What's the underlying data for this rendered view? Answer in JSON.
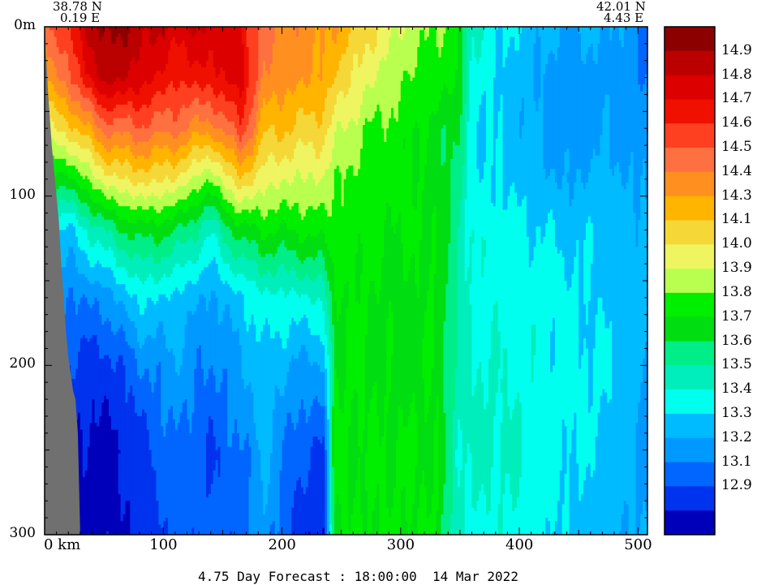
{
  "chart_data": {
    "type": "heatmap",
    "title": "4.75 Day Forecast : 18:00:00  14 Mar 2022",
    "start_point": {
      "lat": "38.78 N",
      "lon": "0.19 E"
    },
    "end_point": {
      "lat": "42.01 N",
      "lon": "4.43 E"
    },
    "xlabel_unit": "km",
    "ylabel_unit": "m",
    "xlim": [
      0,
      508
    ],
    "ylim": [
      0,
      300
    ],
    "y_inverted": true,
    "x_ticks": [
      0,
      100,
      200,
      300,
      400,
      500
    ],
    "y_tick_labels": [
      "0m",
      "100",
      "200",
      "300"
    ],
    "y_ticks": [
      0,
      100,
      200,
      300
    ],
    "colorbar": {
      "levels": [
        {
          "label": "",
          "color": "#8c0000"
        },
        {
          "label": "14.9",
          "color": "#bb0000"
        },
        {
          "label": "14.8",
          "color": "#dd0000"
        },
        {
          "label": "14.7",
          "color": "#f01000"
        },
        {
          "label": "14.6",
          "color": "#ff4020"
        },
        {
          "label": "14.5",
          "color": "#ff7040"
        },
        {
          "label": "14.4",
          "color": "#ff9020"
        },
        {
          "label": "14.3",
          "color": "#ffb400"
        },
        {
          "label": "14.1",
          "color": "#f5d838"
        },
        {
          "label": "14.0",
          "color": "#eef560"
        },
        {
          "label": "13.9",
          "color": "#b8ff50"
        },
        {
          "label": "13.8",
          "color": "#00ee00"
        },
        {
          "label": "13.7",
          "color": "#00dd10"
        },
        {
          "label": "13.6",
          "color": "#00ee88"
        },
        {
          "label": "13.5",
          "color": "#00eebb"
        },
        {
          "label": "13.4",
          "color": "#00ffee"
        },
        {
          "label": "13.3",
          "color": "#00bbff"
        },
        {
          "label": "13.2",
          "color": "#0099ff"
        },
        {
          "label": "13.1",
          "color": "#0066ff"
        },
        {
          "label": "12.9",
          "color": "#0033ee"
        },
        {
          "label": "",
          "color": "#0000bb"
        }
      ]
    },
    "bathymetry": {
      "x_km": [
        0,
        3,
        6,
        8,
        10,
        12,
        14,
        16,
        18,
        20,
        22,
        24,
        26,
        28,
        30
      ],
      "depth_m": [
        0,
        40,
        70,
        85,
        100,
        115,
        140,
        160,
        180,
        195,
        205,
        215,
        220,
        240,
        300
      ]
    },
    "profiles": [
      {
        "x": 0,
        "temps": [
          14.4,
          14.25,
          14.05,
          13.7,
          13.4,
          13.2,
          13.1,
          13.0,
          12.95
        ]
      },
      {
        "x": 20,
        "temps": [
          14.6,
          14.45,
          14.1,
          13.7,
          13.3,
          13.1,
          13.0,
          12.9,
          12.85
        ]
      },
      {
        "x": 50,
        "temps": [
          14.95,
          14.85,
          14.4,
          14.0,
          13.55,
          13.15,
          12.95,
          12.85,
          12.85
        ]
      },
      {
        "x": 80,
        "temps": [
          14.85,
          14.75,
          14.45,
          14.1,
          13.7,
          13.35,
          13.1,
          12.95,
          12.95
        ]
      },
      {
        "x": 110,
        "temps": [
          14.75,
          14.6,
          14.4,
          14.05,
          13.65,
          13.3,
          13.2,
          13.1,
          13.05
        ]
      },
      {
        "x": 140,
        "temps": [
          14.8,
          14.65,
          14.3,
          13.85,
          13.45,
          13.2,
          13.1,
          13.0,
          13.05
        ]
      },
      {
        "x": 165,
        "temps": [
          14.7,
          14.75,
          14.55,
          14.15,
          13.7,
          13.3,
          13.2,
          13.1,
          13.05
        ]
      },
      {
        "x": 185,
        "temps": [
          14.4,
          14.35,
          14.2,
          14.0,
          13.75,
          13.4,
          13.3,
          13.25,
          13.2
        ]
      },
      {
        "x": 210,
        "temps": [
          14.35,
          14.3,
          14.15,
          13.95,
          13.75,
          13.4,
          13.2,
          13.05,
          12.95
        ]
      },
      {
        "x": 235,
        "temps": [
          14.3,
          14.25,
          14.1,
          13.95,
          13.8,
          13.45,
          13.2,
          13.0,
          12.9
        ]
      },
      {
        "x": 245,
        "temps": [
          14.25,
          14.15,
          14.0,
          13.85,
          13.8,
          13.75,
          13.75,
          13.75,
          13.75
        ]
      },
      {
        "x": 270,
        "temps": [
          14.1,
          14.0,
          13.85,
          13.8,
          13.78,
          13.75,
          13.75,
          13.75,
          13.75
        ]
      },
      {
        "x": 300,
        "temps": [
          13.95,
          13.85,
          13.8,
          13.78,
          13.75,
          13.7,
          13.7,
          13.75,
          13.75
        ]
      },
      {
        "x": 330,
        "temps": [
          13.85,
          13.8,
          13.7,
          13.7,
          13.75,
          13.75,
          13.75,
          13.75,
          13.75
        ]
      },
      {
        "x": 348,
        "temps": [
          13.8,
          13.75,
          13.65,
          13.6,
          13.55,
          13.5,
          13.5,
          13.45,
          13.45
        ]
      },
      {
        "x": 360,
        "temps": [
          13.45,
          13.4,
          13.35,
          13.35,
          13.4,
          13.4,
          13.45,
          13.45,
          13.4
        ]
      },
      {
        "x": 400,
        "temps": [
          13.3,
          13.25,
          13.25,
          13.3,
          13.35,
          13.4,
          13.4,
          13.45,
          13.4
        ]
      },
      {
        "x": 440,
        "temps": [
          13.2,
          13.15,
          13.15,
          13.2,
          13.3,
          13.35,
          13.35,
          13.35,
          13.3
        ]
      },
      {
        "x": 470,
        "temps": [
          13.25,
          13.2,
          13.2,
          13.25,
          13.3,
          13.3,
          13.35,
          13.3,
          13.25
        ]
      },
      {
        "x": 508,
        "temps": [
          13.1,
          13.1,
          13.15,
          13.2,
          13.25,
          13.25,
          13.2,
          13.2,
          13.2
        ]
      }
    ],
    "profile_depths_m": [
      0,
      30,
      60,
      90,
      120,
      160,
      200,
      250,
      300
    ]
  }
}
